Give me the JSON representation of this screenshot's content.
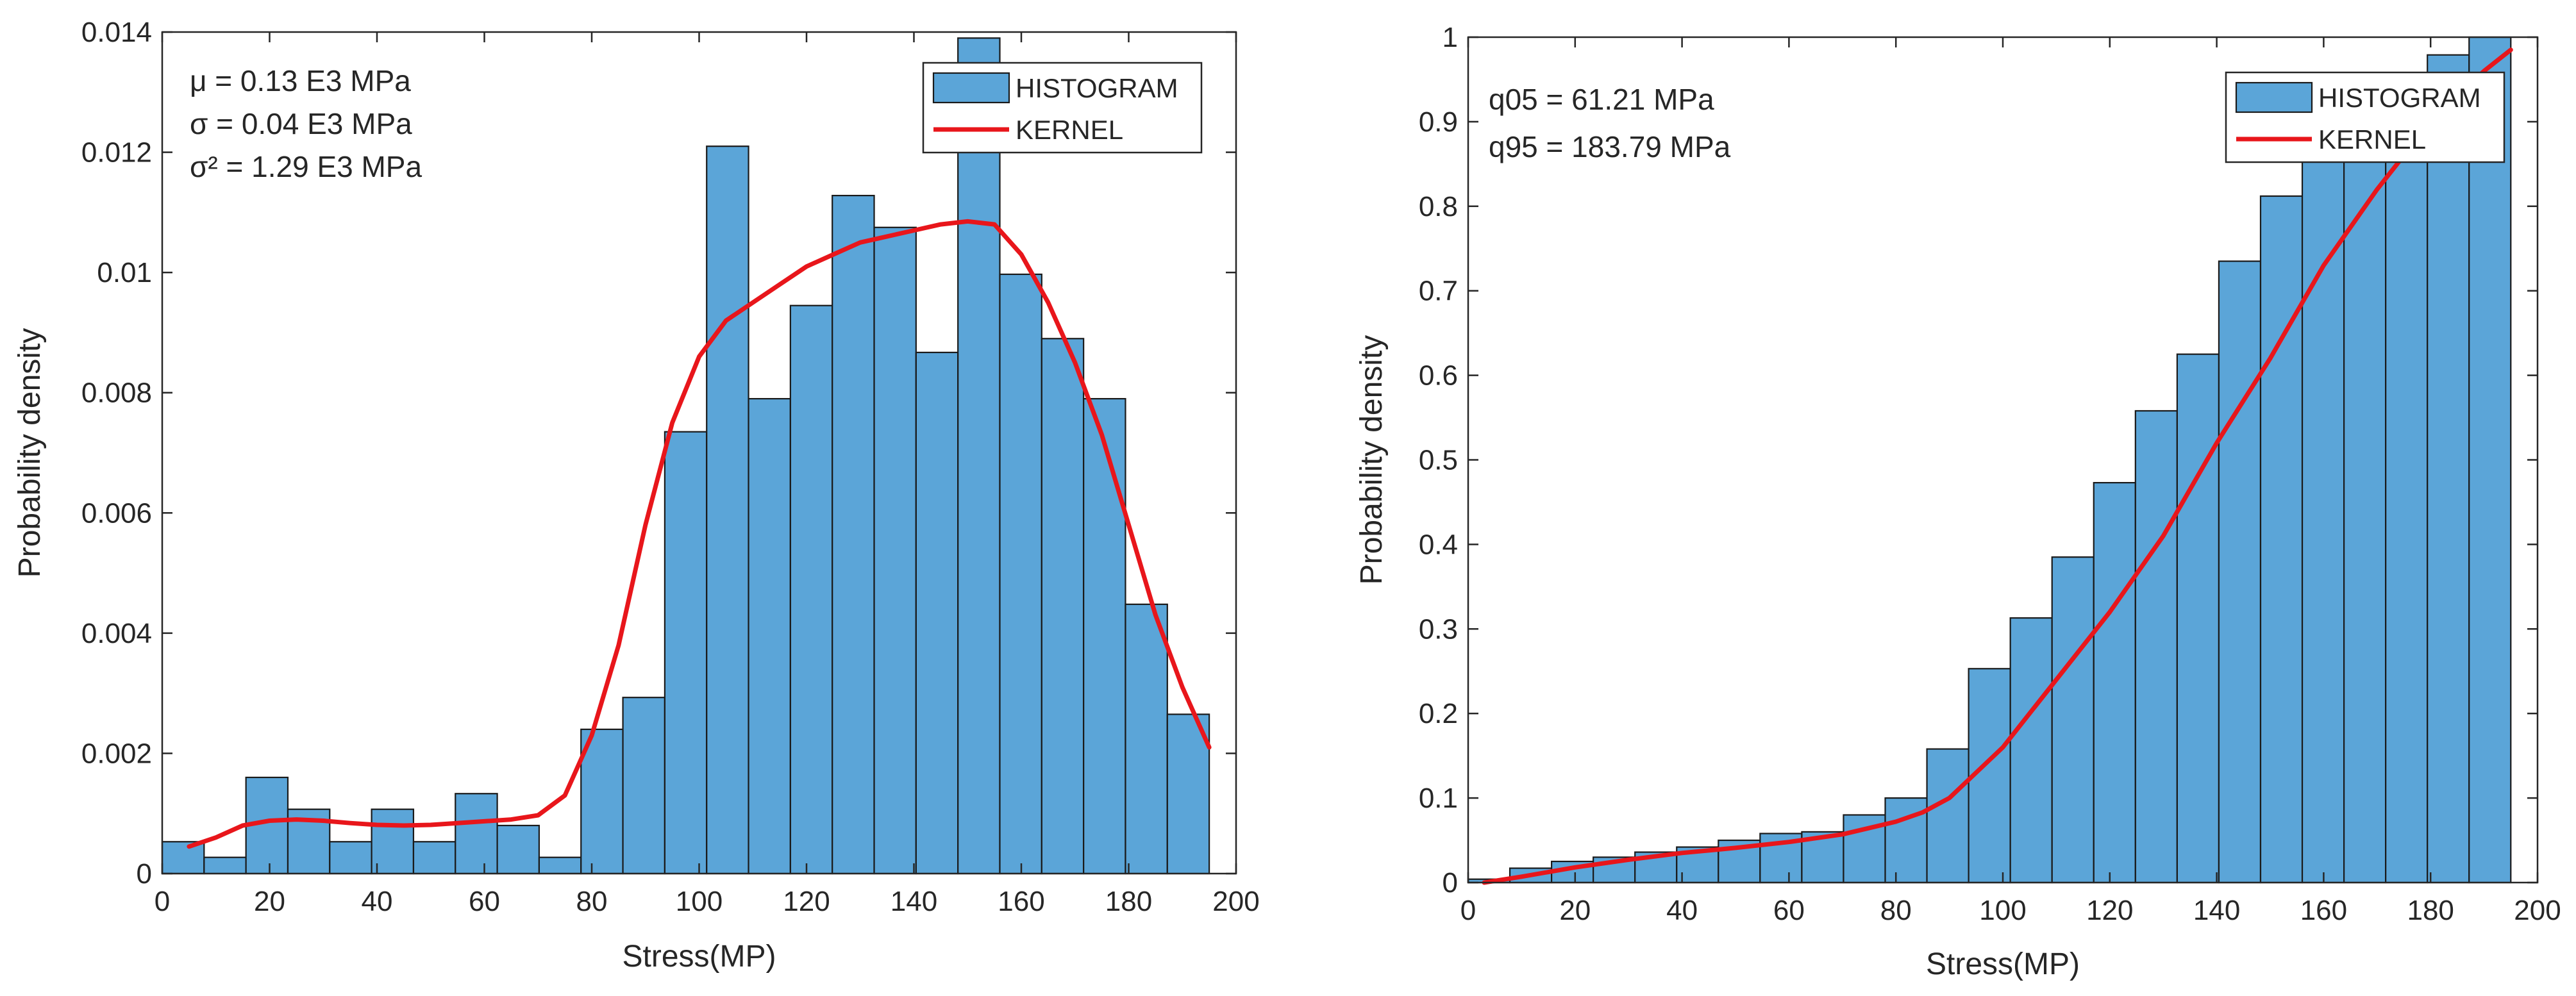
{
  "chart_data": [
    {
      "type": "bar",
      "title": "",
      "xlabel": "Stress(MP)",
      "ylabel": "Probability density",
      "xlim": [
        0,
        200
      ],
      "ylim": [
        0,
        0.014
      ],
      "xticks": [
        "0",
        "20",
        "40",
        "60",
        "80",
        "100",
        "120",
        "140",
        "160",
        "180",
        "200"
      ],
      "yticks": [
        "0",
        "0.002",
        "0.004",
        "0.006",
        "0.008",
        "0.01",
        "0.012",
        "0.014"
      ],
      "bin_edges": [
        0,
        7.8,
        15.6,
        23.4,
        31.2,
        39.0,
        46.8,
        54.6,
        62.4,
        70.2,
        78.0,
        85.8,
        93.6,
        101.4,
        109.2,
        117.0,
        124.8,
        132.6,
        140.4,
        148.2,
        156.0,
        163.8,
        171.6,
        179.4,
        187.2,
        195.0
      ],
      "series": [
        {
          "name": "HISTOGRAM",
          "color": "#5ba5d8",
          "values": [
            0.00053,
            0.00027,
            0.0016,
            0.00107,
            0.00053,
            0.00107,
            0.00053,
            0.00133,
            0.0008,
            0.00027,
            0.0024,
            0.00293,
            0.00735,
            0.0121,
            0.0079,
            0.00945,
            0.01128,
            0.01075,
            0.00867,
            0.0139,
            0.00997,
            0.0089,
            0.0079,
            0.00448,
            0.00265
          ]
        },
        {
          "name": "KERNEL",
          "color": "#e8161b",
          "type": "line",
          "x": [
            5,
            10,
            15,
            20,
            25,
            30,
            35,
            40,
            45,
            50,
            55,
            60,
            65,
            70,
            75,
            80,
            85,
            90,
            95,
            100,
            105,
            110,
            115,
            120,
            125,
            130,
            135,
            140,
            145,
            150,
            155,
            160,
            165,
            170,
            175,
            180,
            185,
            190,
            195
          ],
          "values": [
            0.00045,
            0.0006,
            0.0008,
            0.00088,
            0.0009,
            0.00088,
            0.00084,
            0.00081,
            0.0008,
            0.00081,
            0.00084,
            0.00087,
            0.0009,
            0.00097,
            0.0013,
            0.0023,
            0.0038,
            0.0058,
            0.0075,
            0.0086,
            0.0092,
            0.0095,
            0.0098,
            0.0101,
            0.0103,
            0.0105,
            0.0106,
            0.0107,
            0.0108,
            0.01085,
            0.0108,
            0.0103,
            0.0095,
            0.0085,
            0.0073,
            0.0058,
            0.0043,
            0.0031,
            0.0021
          ]
        }
      ],
      "legend": {
        "position": "top-right",
        "entries": [
          "HISTOGRAM",
          "KERNEL"
        ]
      },
      "annotations": [
        "μ = 0.13 E3  MPa",
        "σ = 0.04 E3  MPa",
        "σ² = 1.29 E3  MPa"
      ]
    },
    {
      "type": "bar",
      "title": "",
      "xlabel": "Stress(MP)",
      "ylabel": "Probability density",
      "xlim": [
        0,
        200
      ],
      "ylim": [
        0,
        1
      ],
      "xticks": [
        "0",
        "20",
        "40",
        "60",
        "80",
        "100",
        "120",
        "140",
        "160",
        "180",
        "200"
      ],
      "yticks": [
        "0",
        "0.1",
        "0.2",
        "0.3",
        "0.4",
        "0.5",
        "0.6",
        "0.7",
        "0.8",
        "0.9",
        "1"
      ],
      "bin_edges": [
        0,
        7.8,
        15.6,
        23.4,
        31.2,
        39.0,
        46.8,
        54.6,
        62.4,
        70.2,
        78.0,
        85.8,
        93.6,
        101.4,
        109.2,
        117.0,
        124.8,
        132.6,
        140.4,
        148.2,
        156.0,
        163.8,
        171.6,
        179.4,
        187.2,
        195.0
      ],
      "series": [
        {
          "name": "HISTOGRAM",
          "color": "#5ba5d8",
          "values": [
            0.004,
            0.017,
            0.025,
            0.03,
            0.036,
            0.042,
            0.05,
            0.058,
            0.06,
            0.08,
            0.1,
            0.158,
            0.253,
            0.313,
            0.385,
            0.473,
            0.558,
            0.625,
            0.735,
            0.812,
            0.875,
            0.929,
            0.958,
            0.979,
            1.0
          ]
        },
        {
          "name": "KERNEL",
          "color": "#e8161b",
          "type": "line",
          "x": [
            3,
            10,
            20,
            30,
            40,
            50,
            60,
            70,
            80,
            85,
            90,
            95,
            100,
            110,
            120,
            130,
            140,
            150,
            160,
            170,
            180,
            190,
            195
          ],
          "values": [
            0.0,
            0.007,
            0.018,
            0.027,
            0.035,
            0.041,
            0.048,
            0.057,
            0.072,
            0.083,
            0.1,
            0.13,
            0.16,
            0.24,
            0.32,
            0.41,
            0.52,
            0.62,
            0.73,
            0.82,
            0.9,
            0.96,
            0.985
          ]
        }
      ],
      "legend": {
        "position": "top-right",
        "entries": [
          "HISTOGRAM",
          "KERNEL"
        ]
      },
      "annotations": [
        "q05 = 61.21 MPa",
        "q95 = 183.79 MPa"
      ]
    }
  ]
}
